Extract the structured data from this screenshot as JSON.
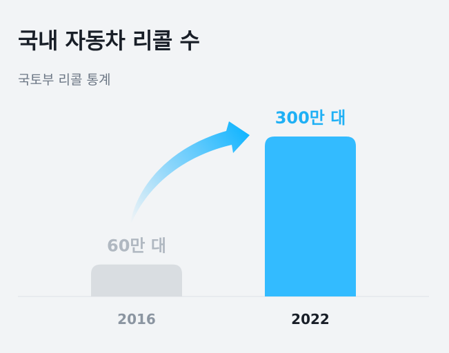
{
  "title": "국내 자동차 리콜 수",
  "subtitle": "국토부 리콜 통계",
  "colors": {
    "background": "#f2f4f6",
    "bar_past": "#d9dde1",
    "bar_highlight": "#33bbff",
    "label_past": "#b0b8c1",
    "label_highlight": "#1fb0f5",
    "axis": "#e5e8eb",
    "tick_past": "#8b95a1",
    "tick_highlight": "#191f28"
  },
  "chart_data": {
    "type": "bar",
    "categories": [
      "2016",
      "2022"
    ],
    "values": [
      60,
      300
    ],
    "unit": "만 대",
    "data_labels": [
      "60만 대",
      "300만 대"
    ],
    "highlight_index": 1,
    "annotation": "increase-arrow"
  }
}
